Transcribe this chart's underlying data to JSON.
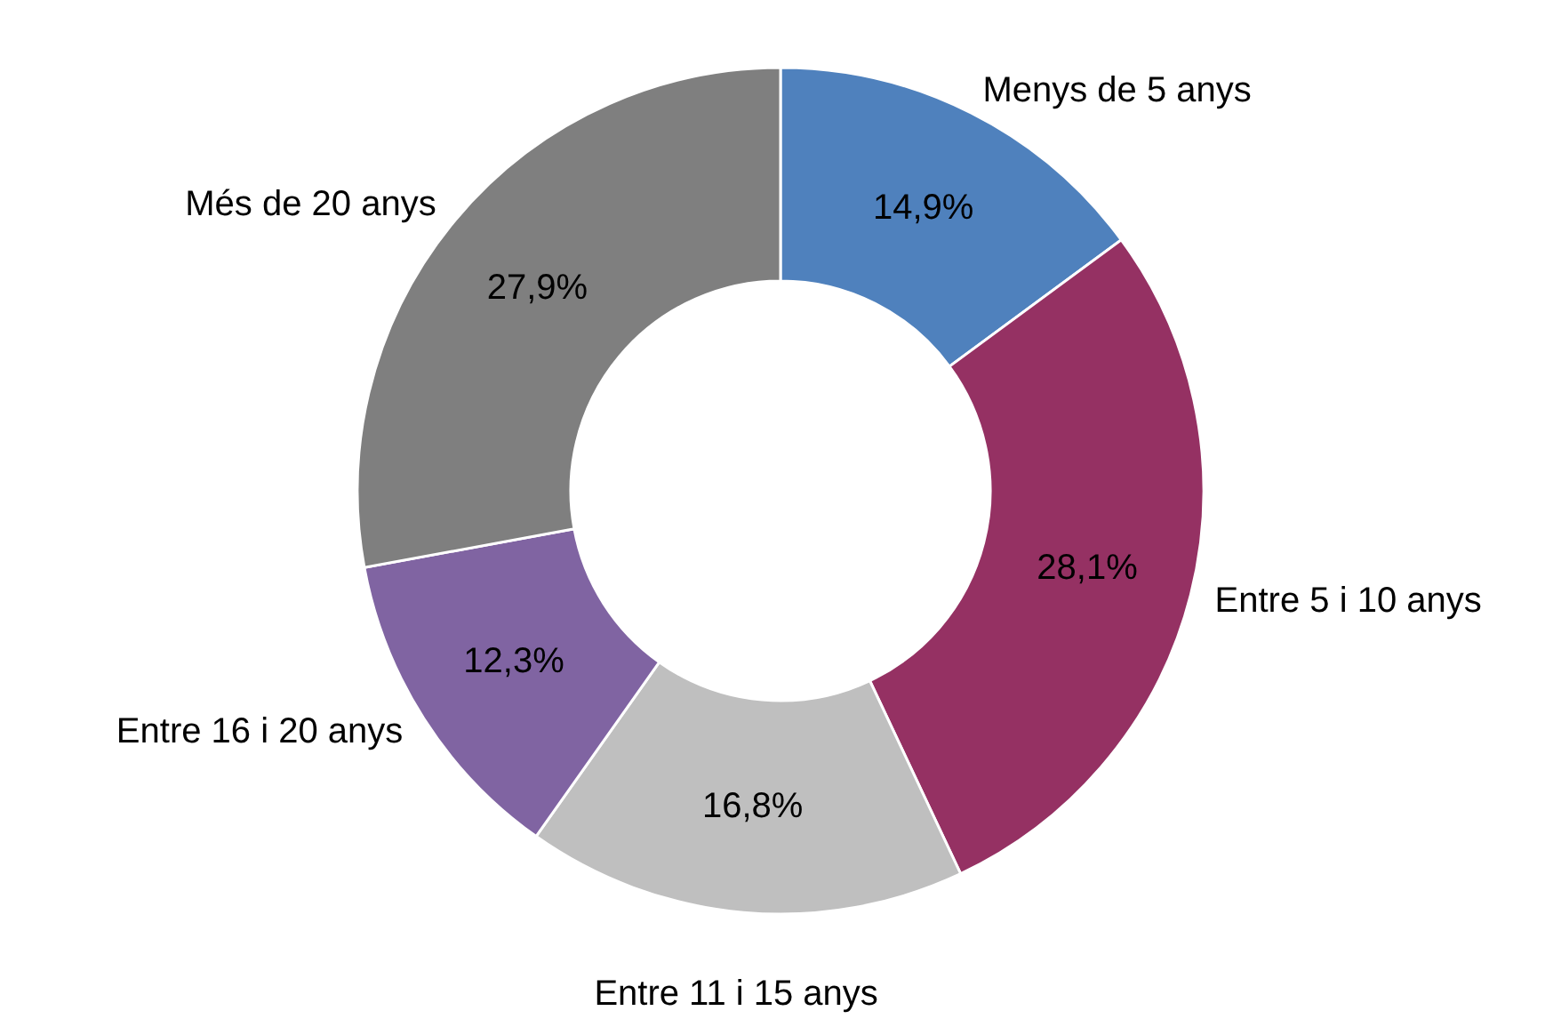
{
  "chart_data": {
    "type": "donut",
    "categories": [
      "Menys de 5 anys",
      "Entre 5 i 10 anys",
      "Entre 11 i 15 anys",
      "Entre 16 i 20 anys",
      "Més de 20 anys"
    ],
    "values": [
      14.9,
      28.1,
      16.8,
      12.3,
      27.9
    ],
    "colors": [
      "#4f81bd",
      "#953163",
      "#bfbfbf",
      "#8064a2",
      "#7f7f7f"
    ],
    "value_labels": [
      "14,9%",
      "28,1%",
      "16,8%",
      "12,3%",
      "27,9%"
    ]
  }
}
